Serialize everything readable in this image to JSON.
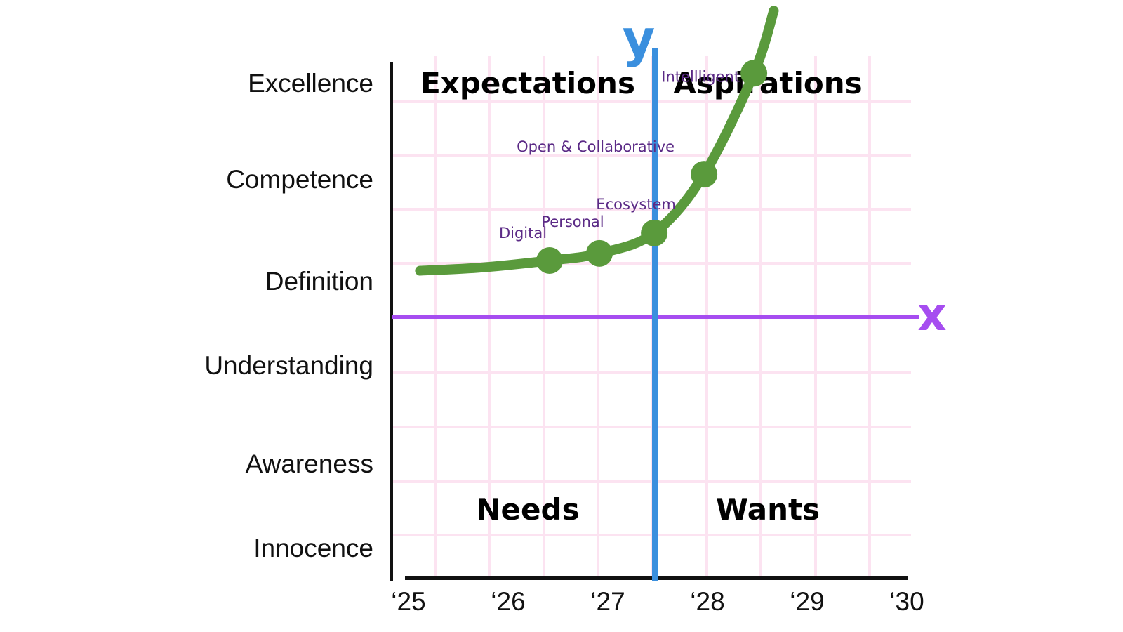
{
  "chart_data": {
    "type": "line",
    "title": "",
    "y_levels": [
      "Innocence",
      "Awareness",
      "Understanding",
      "Definition",
      "Competence",
      "Excellence"
    ],
    "x_ticks": [
      "‘25",
      "‘26",
      "‘27",
      "‘28",
      "‘29",
      "‘30"
    ],
    "x_range": [
      2025,
      2030
    ],
    "y_range": [
      0,
      5
    ],
    "quadrants": {
      "top_left": "Expectations",
      "top_right": "Aspirations",
      "bottom_left": "Needs",
      "bottom_right": "Wants"
    },
    "axis_markers": {
      "y_label": "y",
      "x_label": "x",
      "y_color": "#3a8fde",
      "x_color": "#a64df0"
    },
    "points": [
      {
        "label": "Digital",
        "x": 2026.5,
        "y": 3.2
      },
      {
        "label": "Personal",
        "x": 2027.0,
        "y": 3.27
      },
      {
        "label": "Ecosystem",
        "x": 2027.55,
        "y": 3.47
      },
      {
        "label": "Open & Collaborative",
        "x": 2028.05,
        "y": 4.05
      },
      {
        "label": "Intellligent",
        "x": 2028.55,
        "y": 5.1
      }
    ],
    "curve": [
      {
        "x": 2025.2,
        "y": 3.1
      },
      {
        "x": 2025.8,
        "y": 3.13
      },
      {
        "x": 2026.5,
        "y": 3.2
      },
      {
        "x": 2027.0,
        "y": 3.27
      },
      {
        "x": 2027.55,
        "y": 3.47
      },
      {
        "x": 2028.05,
        "y": 4.05
      },
      {
        "x": 2028.55,
        "y": 5.1
      },
      {
        "x": 2028.75,
        "y": 5.75
      }
    ],
    "grid": true,
    "colors": {
      "curve": "#5a9a3c",
      "grid": "#fce3f1",
      "point_label": "#5b2a86",
      "axis": "#111111"
    }
  }
}
